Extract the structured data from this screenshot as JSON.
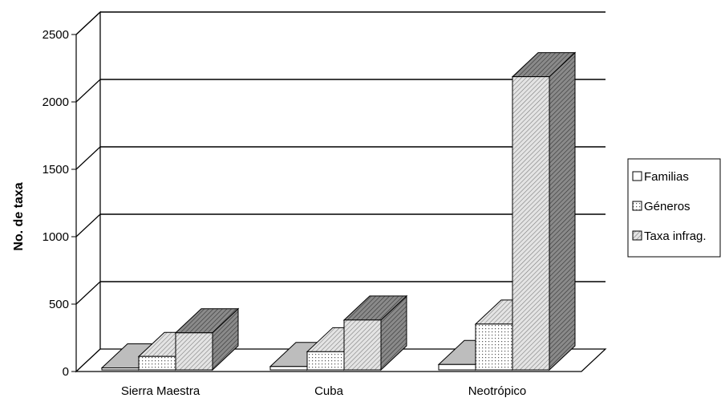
{
  "chart_data": {
    "type": "bar",
    "categories": [
      "Sierra Maestra",
      "Cuba",
      "Neotrópico"
    ],
    "series": [
      {
        "name": "Familias",
        "values": [
          15,
          25,
          40
        ]
      },
      {
        "name": "Géneros",
        "values": [
          100,
          135,
          340
        ]
      },
      {
        "name": "Taxa infrag.",
        "values": [
          275,
          370,
          2175
        ]
      }
    ],
    "ylabel": "No. de taxa",
    "xlabel": "",
    "ylim": [
      0,
      2500
    ],
    "yticks": [
      0,
      500,
      1000,
      1500,
      2000,
      2500
    ],
    "grid": true,
    "legend": "right",
    "three_d": true
  }
}
